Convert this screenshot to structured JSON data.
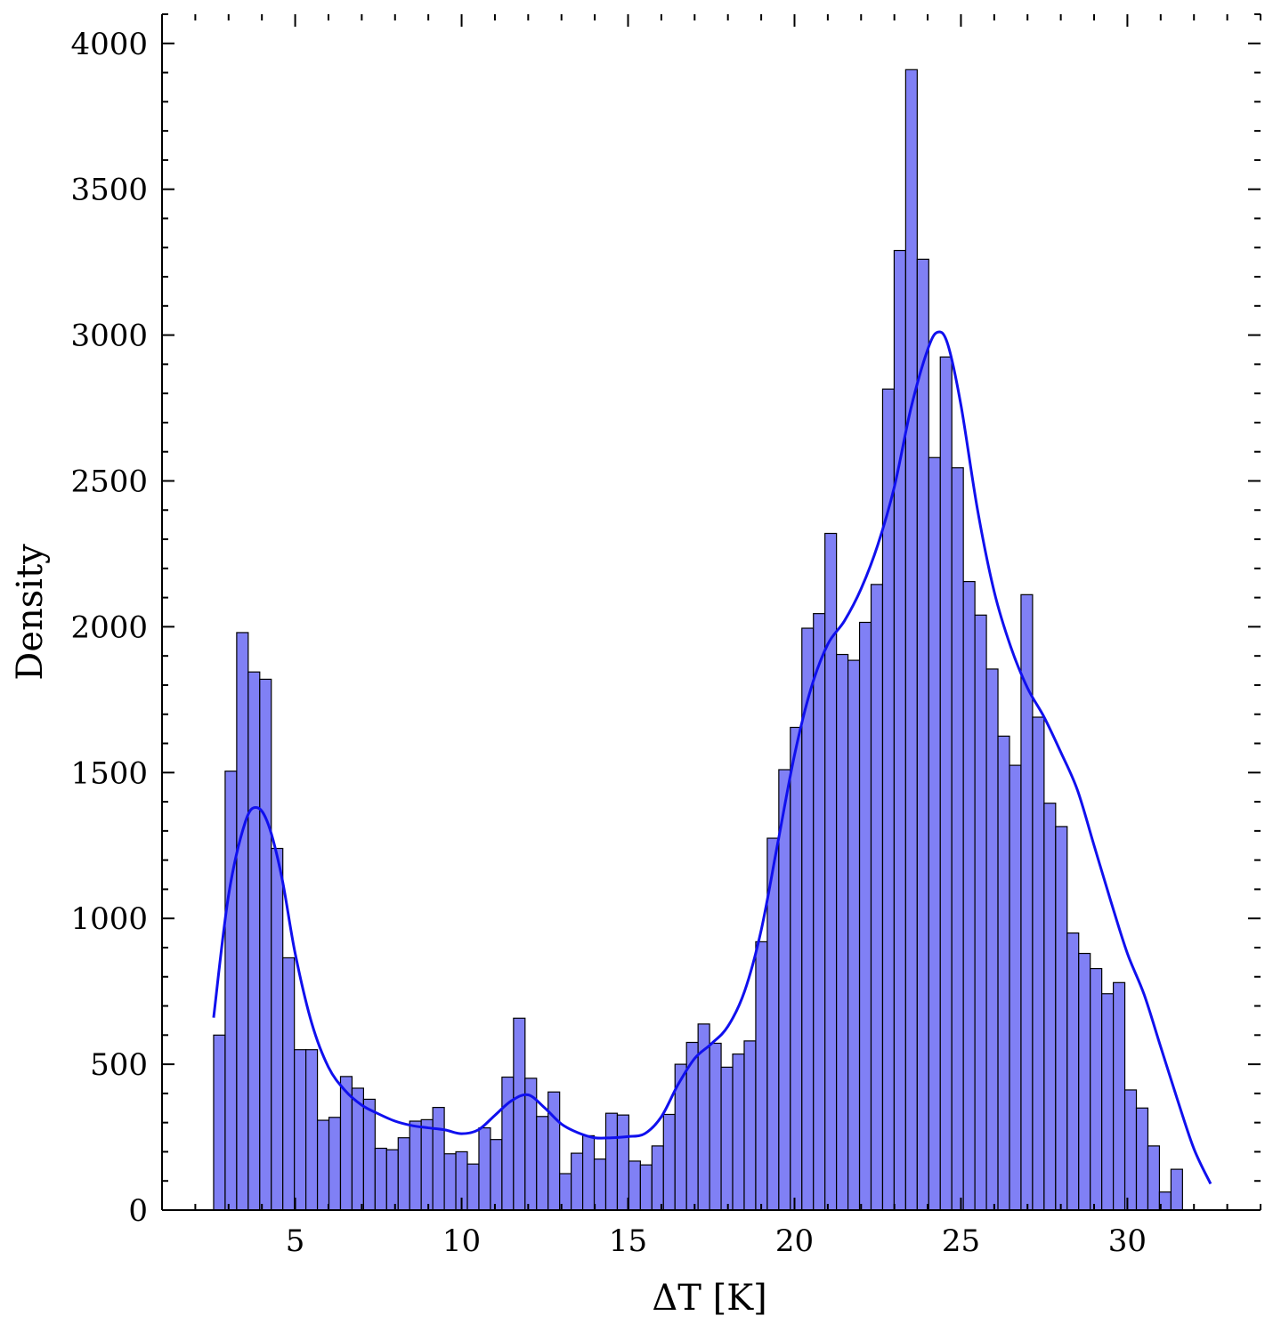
{
  "chart_data": {
    "type": "bar",
    "title": "",
    "xlabel": "ΔT [K]",
    "ylabel": "Density",
    "xlim": [
      1.0,
      34.0
    ],
    "ylim": [
      0,
      4100
    ],
    "xticks": [
      5,
      10,
      15,
      20,
      25,
      30
    ],
    "yticks": [
      0,
      500,
      1000,
      1500,
      2000,
      2500,
      3000,
      3500,
      4000
    ],
    "grid": false,
    "bar_color": "#8080f5",
    "bar_edge_color": "#000000",
    "line_color": "#1010ee",
    "bin_start": 2.55,
    "bin_width": 0.3465,
    "values": [
      600,
      1505,
      1980,
      1845,
      1820,
      1240,
      865,
      550,
      550,
      308,
      318,
      458,
      418,
      380,
      212,
      207,
      248,
      305,
      310,
      352,
      193,
      200,
      158,
      282,
      242,
      456,
      658,
      452,
      321,
      405,
      125,
      195,
      255,
      175,
      332,
      326,
      168,
      155,
      220,
      328,
      500,
      575,
      638,
      572,
      490,
      535,
      580,
      920,
      1275,
      1510,
      1655,
      1995,
      2045,
      2320,
      1905,
      1885,
      2015,
      2145,
      2815,
      3290,
      3910,
      3260,
      2580,
      2925,
      2545,
      2155,
      2040,
      1855,
      1625,
      1525,
      2110,
      1690,
      1395,
      1315,
      950,
      880,
      828,
      742,
      780,
      412,
      350,
      220,
      62,
      140
    ],
    "kde": {
      "x": [
        2.55,
        3.0,
        3.5,
        3.85,
        4.2,
        4.6,
        5.0,
        5.5,
        6.0,
        6.5,
        7.0,
        7.5,
        8.0,
        8.5,
        9.0,
        9.5,
        10.0,
        10.5,
        11.0,
        11.5,
        12.0,
        12.5,
        13.0,
        13.5,
        14.0,
        14.5,
        15.0,
        15.5,
        16.0,
        16.5,
        17.0,
        17.5,
        18.0,
        18.5,
        19.0,
        19.5,
        20.0,
        20.5,
        21.0,
        21.5,
        22.0,
        22.5,
        23.0,
        23.5,
        24.0,
        24.3,
        24.6,
        25.0,
        25.5,
        26.0,
        26.5,
        27.0,
        27.5,
        28.0,
        28.5,
        29.0,
        29.5,
        30.0,
        30.5,
        31.0,
        31.5,
        32.0,
        32.5
      ],
      "y": [
        660,
        1080,
        1330,
        1380,
        1320,
        1140,
        880,
        640,
        490,
        410,
        360,
        330,
        305,
        290,
        282,
        275,
        262,
        275,
        325,
        375,
        395,
        350,
        295,
        265,
        248,
        248,
        252,
        262,
        320,
        430,
        520,
        570,
        630,
        750,
        960,
        1260,
        1560,
        1790,
        1940,
        2020,
        2130,
        2280,
        2480,
        2750,
        2950,
        3010,
        2970,
        2760,
        2400,
        2120,
        1930,
        1790,
        1690,
        1570,
        1440,
        1250,
        1060,
        880,
        740,
        560,
        380,
        210,
        90
      ]
    }
  }
}
